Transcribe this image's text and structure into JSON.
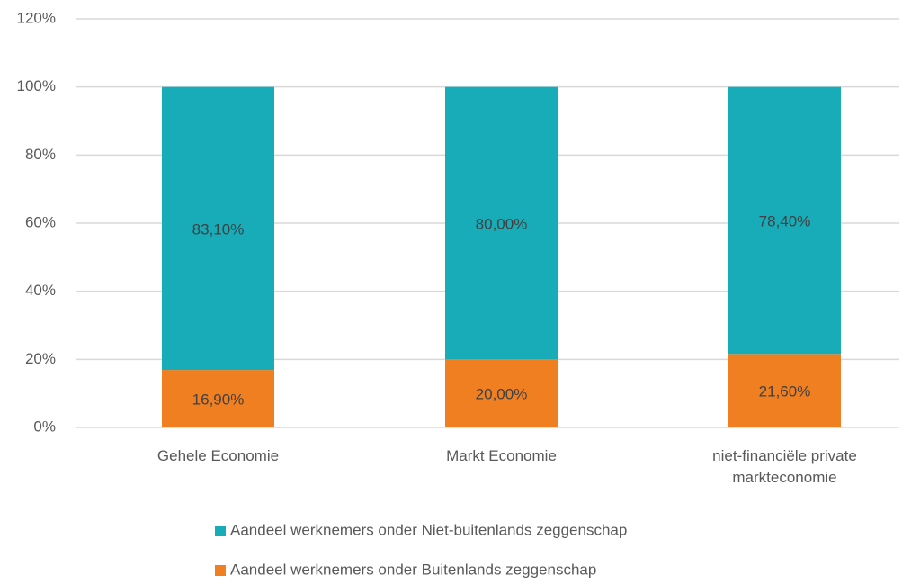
{
  "chart_data": {
    "type": "stacked_bar",
    "categories": [
      "Gehele Economie",
      "Markt Economie",
      "niet-financiële private markteconomie"
    ],
    "series": [
      {
        "name": "Aandeel werknemers onder Buitenlands zeggenschap",
        "color": "#f07f21",
        "values": [
          16.9,
          20,
          21.6
        ],
        "value_labels": [
          "16,90%",
          "20,00%",
          "21,60%"
        ]
      },
      {
        "name": "Aandeel werknemers onder Niet-buitenlands zeggenschap",
        "color": "#17acb8",
        "values": [
          83.1,
          80,
          78.4
        ],
        "value_labels": [
          "83,10%",
          "80,00%",
          "78,40%"
        ]
      }
    ],
    "ylim": [
      0,
      120
    ],
    "yticks": [
      {
        "value": 0,
        "label": "0%"
      },
      {
        "value": 20,
        "label": "20%"
      },
      {
        "value": 40,
        "label": "40%"
      },
      {
        "value": 60,
        "label": "60%"
      },
      {
        "value": 80,
        "label": "80%"
      },
      {
        "value": 100,
        "label": "100%"
      },
      {
        "value": 120,
        "label": "120%"
      }
    ],
    "grid": true
  }
}
